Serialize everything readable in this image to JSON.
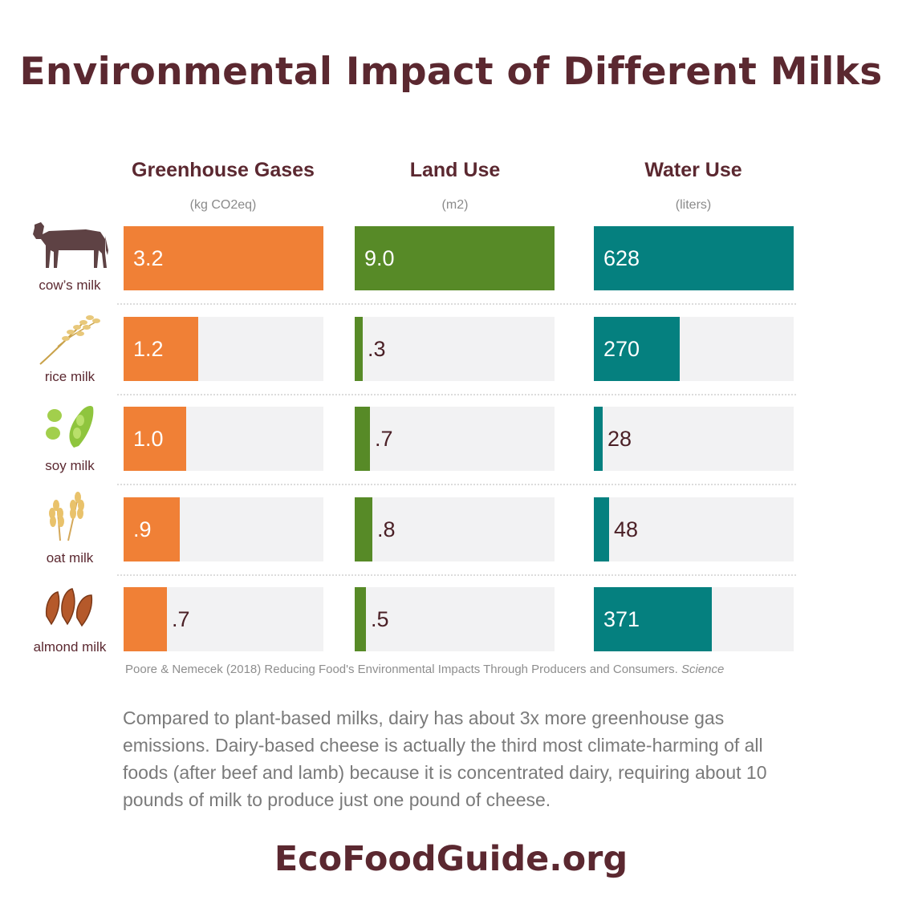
{
  "title": "Environmental Impact of Different Milks",
  "source": "Poore & Nemecek (2018) Reducing Food's Environmental Impacts Through Producers and Consumers.",
  "source_journal": "Science",
  "body_text": "Compared to plant-based milks, dairy has about 3x more greenhouse gas emissions. Dairy-based cheese is actually the third most climate-harming of all foods (after beef and lamb) because it is concentrated dairy, requiring about 10 pounds of milk to produce just one pound of cheese.",
  "website": "EcoFoodGuide.org",
  "colors": {
    "greenhouse": "#f08036",
    "land": "#578a27",
    "water": "#05807f",
    "text_dark": "#5b2830",
    "track": "#f2f2f3"
  },
  "icons": [
    "cow-icon",
    "rice-icon",
    "soy-icon",
    "oat-icon",
    "almond-icon"
  ],
  "chart_data": {
    "type": "bar",
    "orientation": "horizontal",
    "categories": [
      "cow’s milk",
      "rice milk",
      "soy milk",
      "oat milk",
      "almond milk"
    ],
    "series": [
      {
        "name": "Greenhouse Gases",
        "unit": "(kg CO2eq)",
        "values": [
          3.2,
          1.2,
          1.0,
          0.9,
          0.7
        ],
        "labels": [
          "3.2",
          "1.2",
          "1.0",
          ".9",
          ".7"
        ],
        "max": 3.2
      },
      {
        "name": "Land Use",
        "unit": "(m2)",
        "values": [
          9.0,
          0.3,
          0.7,
          0.8,
          0.5
        ],
        "labels": [
          "9.0",
          ".3",
          ".7",
          ".8",
          ".5"
        ],
        "max": 9.0
      },
      {
        "name": "Water Use",
        "unit": "(liters)",
        "values": [
          628,
          270,
          28,
          48,
          371
        ],
        "labels": [
          "628",
          "270",
          "28",
          "48",
          "371"
        ],
        "max": 628
      }
    ]
  }
}
